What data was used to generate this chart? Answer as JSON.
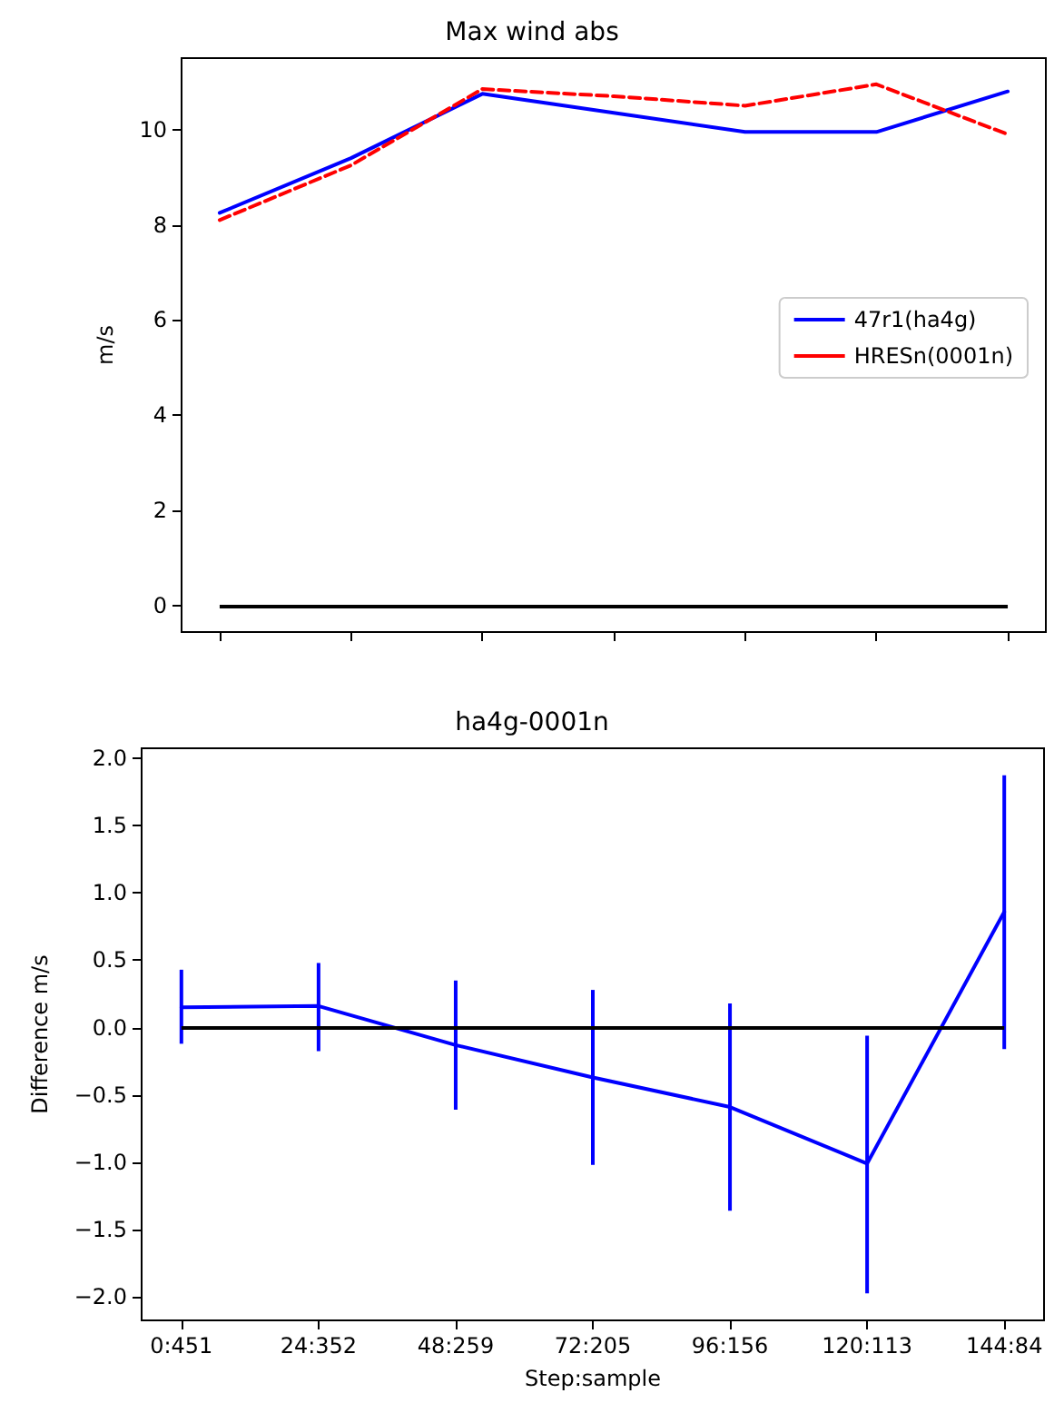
{
  "chart_data": [
    {
      "type": "line",
      "title": "Max wind abs",
      "ylabel": "m/s",
      "categories": [
        null,
        null,
        null,
        null,
        null,
        null,
        null
      ],
      "ylim": [
        -0.55,
        11.5
      ],
      "yticks": [
        0,
        2,
        4,
        6,
        8,
        10
      ],
      "tick_labels": "y",
      "legend": "right",
      "grid": false,
      "marker": "none",
      "series": [
        {
          "name": "47r1(ha4g)",
          "color": "#0000ff",
          "line_style": "solid",
          "values": [
            8.25,
            9.4,
            10.75,
            10.35,
            9.95,
            9.95,
            10.8
          ]
        },
        {
          "name": "HRESn(0001n)",
          "color": "#ff0000",
          "line_style": "dashed",
          "values": [
            8.1,
            9.25,
            10.85,
            10.7,
            10.5,
            10.95,
            9.9
          ]
        }
      ],
      "ref_lines": [
        {
          "axis": "y",
          "value": 0,
          "color": "#000000"
        }
      ]
    },
    {
      "type": "line",
      "title": "ha4g-0001n",
      "ylabel": "Difference m/s",
      "xlabel": "Step:sample",
      "categories": [
        "0:451",
        "24:352",
        "48:259",
        "72:205",
        "96:156",
        "120:113",
        "144:84"
      ],
      "ylim": [
        -2.175,
        2.075
      ],
      "yticks": [
        {
          "value": -2,
          "label": "−2.0"
        },
        {
          "value": -1.5,
          "label": "−1.5"
        },
        {
          "value": -1,
          "label": "−1.0"
        },
        {
          "value": -0.5,
          "label": "−0.5"
        },
        {
          "value": 0,
          "label": "0.0"
        },
        {
          "value": 0.5,
          "label": "0.5"
        },
        {
          "value": 1,
          "label": "1.0"
        },
        {
          "value": 1.5,
          "label": "1.5"
        },
        {
          "value": 2,
          "label": "2.0"
        }
      ],
      "legend": false,
      "grid": false,
      "marker": "none",
      "series": [
        {
          "color": "#0000ff",
          "line_style": "solid",
          "values": [
            0.15,
            0.16,
            -0.13,
            -0.37,
            -0.59,
            -1.01,
            0.86
          ],
          "errors": [
            [
              -0.12,
              0.43
            ],
            [
              -0.175,
              0.48
            ],
            [
              -0.61,
              0.35
            ],
            [
              -1.02,
              0.28
            ],
            [
              -1.36,
              0.18
            ],
            [
              -1.975,
              -0.06
            ],
            [
              -0.16,
              1.875
            ]
          ]
        }
      ],
      "ref_lines": [
        {
          "axis": "y",
          "value": 0,
          "color": "#000000"
        }
      ]
    }
  ]
}
